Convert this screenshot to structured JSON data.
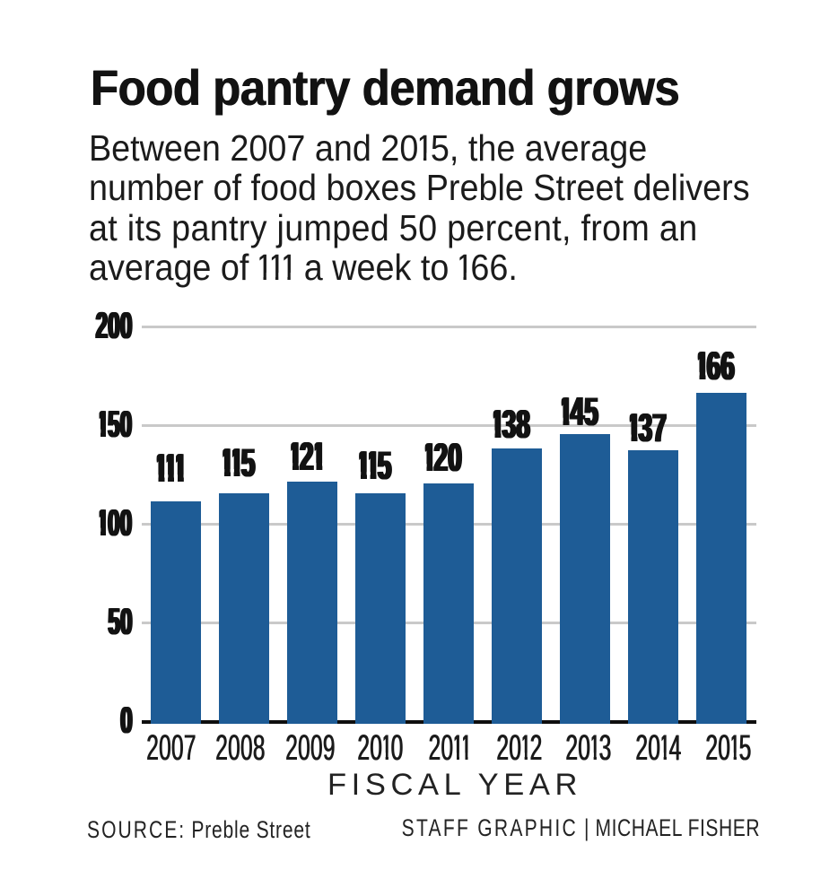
{
  "page": {
    "title": "Food pantry demand grows",
    "subtitle_lines": [
      "Between 2007 and 2015, the average",
      "number of food boxes Preble Street delivers",
      "at its pantry jumped 50 percent, from an",
      "average of 111 a week to 166."
    ]
  },
  "chart_data": {
    "type": "bar",
    "title": "Food pantry demand grows",
    "subtitle": "Between 2007 and 2015, the average number of food boxes Preble Street delivers at its pantry jumped 50 percent, from an average of 111 a week to 166.",
    "categories": [
      "2007",
      "2008",
      "2009",
      "2010",
      "2011",
      "2012",
      "2013",
      "2014",
      "2015"
    ],
    "values": [
      111,
      115,
      121,
      115,
      120,
      138,
      145,
      137,
      166
    ],
    "xlabel": "FISCAL YEAR",
    "ylabel": "",
    "ylim": [
      0,
      200
    ],
    "yticks": [
      0,
      50,
      100,
      150,
      200
    ],
    "grid": true,
    "legend": false,
    "bar_color": "#1e5c96",
    "gridline_color": "#c9c9c9",
    "axis_color": "#0e0e0e",
    "label_color": "#121212"
  },
  "footer": {
    "source_label": "SOURCE:",
    "source_value": "Preble Street",
    "credit_staff": "STAFF GRAPHIC",
    "credit_separator": "|",
    "credit_author": "MICHAEL FISHER"
  }
}
